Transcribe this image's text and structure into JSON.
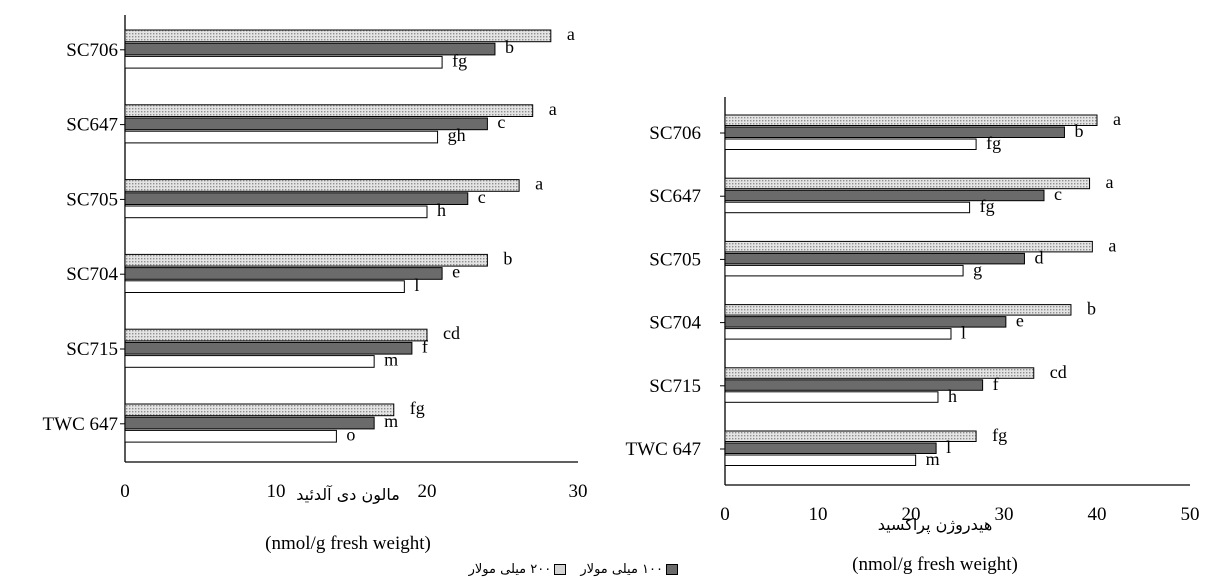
{
  "colors": {
    "series_0": "#ffffff",
    "series_100": "#6b6b6b",
    "series_200": "#d4d4d4"
  },
  "legend": [
    {
      "label": "۱۰۰ میلی مولار",
      "color": "#6b6b6b"
    },
    {
      "label": "۲۰۰ میلی مولار",
      "color": "#d4d4d4"
    }
  ],
  "chart_data": [
    {
      "type": "bar",
      "orientation": "horizontal",
      "categories": [
        "SC706",
        "SC647",
        "SC705",
        "SC704",
        "SC715",
        "TWC 647"
      ],
      "series": [
        {
          "values": [
            28.2,
            27.0,
            26.1,
            24.0,
            20.0,
            17.8
          ],
          "letters": [
            "a",
            "a",
            "a",
            "b",
            "cd",
            "fg"
          ],
          "color": "#d4d4d4",
          "pattern": "dotted"
        },
        {
          "name": "۱۰۰ میلی مولار",
          "values": [
            24.5,
            24.0,
            22.7,
            21.0,
            19.0,
            16.5
          ],
          "letters": [
            "b",
            "c",
            "c",
            "e",
            "f",
            "m"
          ],
          "color": "#6b6b6b"
        },
        {
          "values": [
            21.0,
            20.7,
            20.0,
            18.5,
            16.5,
            14.0
          ],
          "letters": [
            "fg",
            "gh",
            "h",
            "l",
            "m",
            "o"
          ],
          "color": "#ffffff"
        }
      ],
      "xticks": [
        "0",
        "10",
        "20",
        "30"
      ],
      "xlim": [
        0,
        30
      ],
      "xlabel": "مالون دی آلدئید",
      "xunit": "(nmol/g fresh weight)",
      "grid": false
    },
    {
      "type": "bar",
      "orientation": "horizontal",
      "categories": [
        "SC706",
        "SC647",
        "SC705",
        "SC704",
        "SC715",
        "TWC 647"
      ],
      "series": [
        {
          "values": [
            40.0,
            39.2,
            39.5,
            37.2,
            33.2,
            27.0
          ],
          "letters": [
            "a",
            "a",
            "a",
            "b",
            "cd",
            "fg"
          ],
          "color": "#d4d4d4",
          "pattern": "dotted"
        },
        {
          "name": "۱۰۰ میلی مولار",
          "values": [
            36.5,
            34.3,
            32.2,
            30.2,
            27.7,
            22.7
          ],
          "letters": [
            "b",
            "c",
            "d",
            "e",
            "f",
            "l"
          ],
          "color": "#6b6b6b"
        },
        {
          "values": [
            27.0,
            26.3,
            25.6,
            24.3,
            22.9,
            20.5
          ],
          "letters": [
            "fg",
            "fg",
            "g",
            "l",
            "h",
            "m"
          ],
          "color": "#ffffff"
        }
      ],
      "xticks": [
        "0",
        "10",
        "20",
        "30",
        "40",
        "50"
      ],
      "xlim": [
        0,
        50
      ],
      "xlabel": "هیدروژن پراکسید",
      "xunit": "(nmol/g fresh weight)",
      "grid": false
    }
  ]
}
